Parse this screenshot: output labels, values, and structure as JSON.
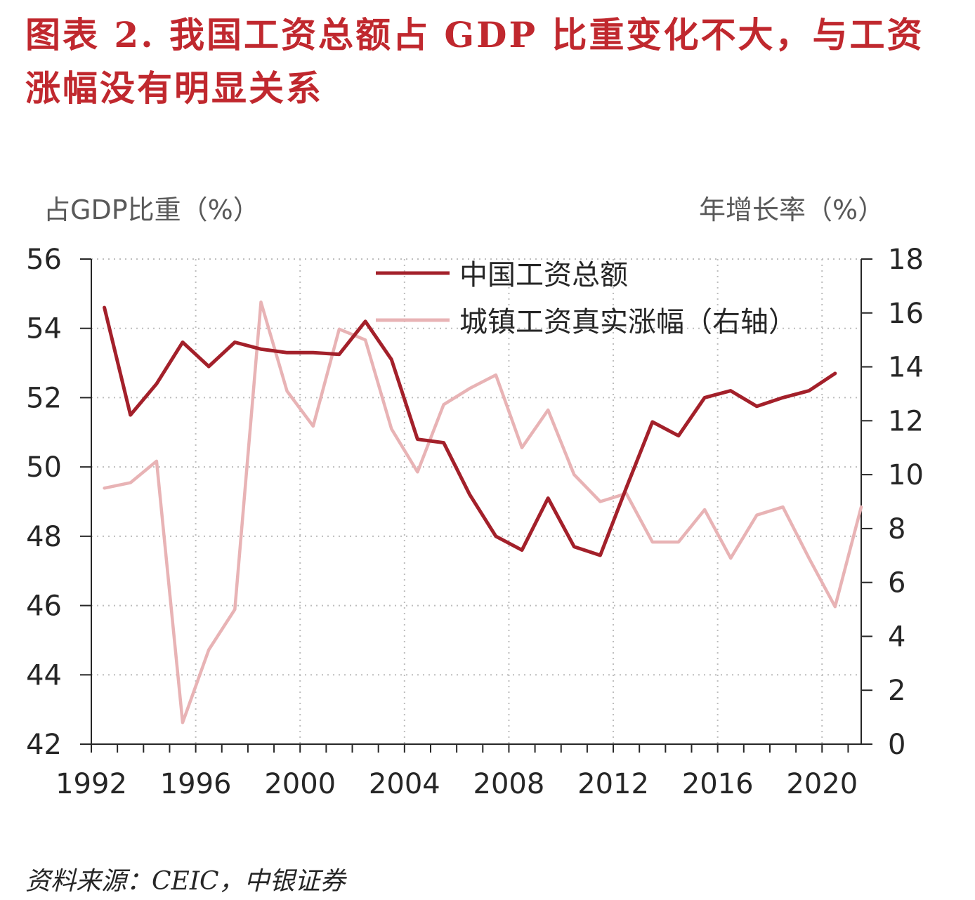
{
  "title": "图表 2. 我国工资总额占 GDP 比重变化不大，与工资涨幅没有明显关系",
  "source": "资料来源：CEIC，中银证券",
  "colors": {
    "title": "#c0282e",
    "series_main": "#a3202a",
    "series_secondary": "#e8b3b5"
  },
  "chart_data": {
    "type": "line",
    "y_left_label": "占GDP比重（%）",
    "y_right_label": "年增长率（%）",
    "ylim_left": [
      42,
      56
    ],
    "ylim_right": [
      0,
      18
    ],
    "y_left_ticks": [
      "42",
      "44",
      "46",
      "48",
      "50",
      "52",
      "54",
      "56"
    ],
    "y_right_ticks": [
      "0",
      "2",
      "4",
      "6",
      "8",
      "10",
      "12",
      "14",
      "16",
      "18"
    ],
    "x_tick_labels": [
      "1992",
      "1996",
      "2000",
      "2004",
      "2008",
      "2012",
      "2016",
      "2020"
    ],
    "grid": "dotted",
    "legend_position": "top-center",
    "series": [
      {
        "name": "中国工资总额",
        "axis": "left",
        "x": [
          1992,
          1993,
          1994,
          1995,
          1996,
          1997,
          1998,
          1999,
          2000,
          2001,
          2002,
          2003,
          2004,
          2005,
          2006,
          2007,
          2008,
          2009,
          2010,
          2011,
          2012,
          2013,
          2014,
          2015,
          2016,
          2017,
          2018,
          2019,
          2020
        ],
        "values": [
          54.6,
          51.5,
          52.4,
          53.6,
          52.9,
          53.6,
          53.4,
          53.3,
          53.3,
          53.25,
          54.2,
          53.1,
          50.8,
          50.7,
          49.2,
          48.0,
          47.6,
          49.1,
          47.7,
          47.45,
          49.4,
          51.3,
          50.9,
          52.0,
          52.2,
          51.75,
          52.0,
          52.2,
          52.7
        ]
      },
      {
        "name": "城镇工资真实涨幅（右轴）",
        "axis": "right",
        "x": [
          1992,
          1993,
          1994,
          1995,
          1996,
          1997,
          1998,
          1999,
          2000,
          2001,
          2002,
          2003,
          2004,
          2005,
          2006,
          2007,
          2008,
          2009,
          2010,
          2011,
          2012,
          2013,
          2014,
          2015,
          2016,
          2017,
          2018,
          2019,
          2020,
          2021
        ],
        "values": [
          9.5,
          9.7,
          10.5,
          0.8,
          3.5,
          5.0,
          16.4,
          13.1,
          11.8,
          15.4,
          15.0,
          11.7,
          10.1,
          12.6,
          13.2,
          13.7,
          11.0,
          12.4,
          10.0,
          9.0,
          9.3,
          7.5,
          7.5,
          8.7,
          6.9,
          8.5,
          8.8,
          6.9,
          5.1,
          8.8
        ]
      }
    ]
  }
}
